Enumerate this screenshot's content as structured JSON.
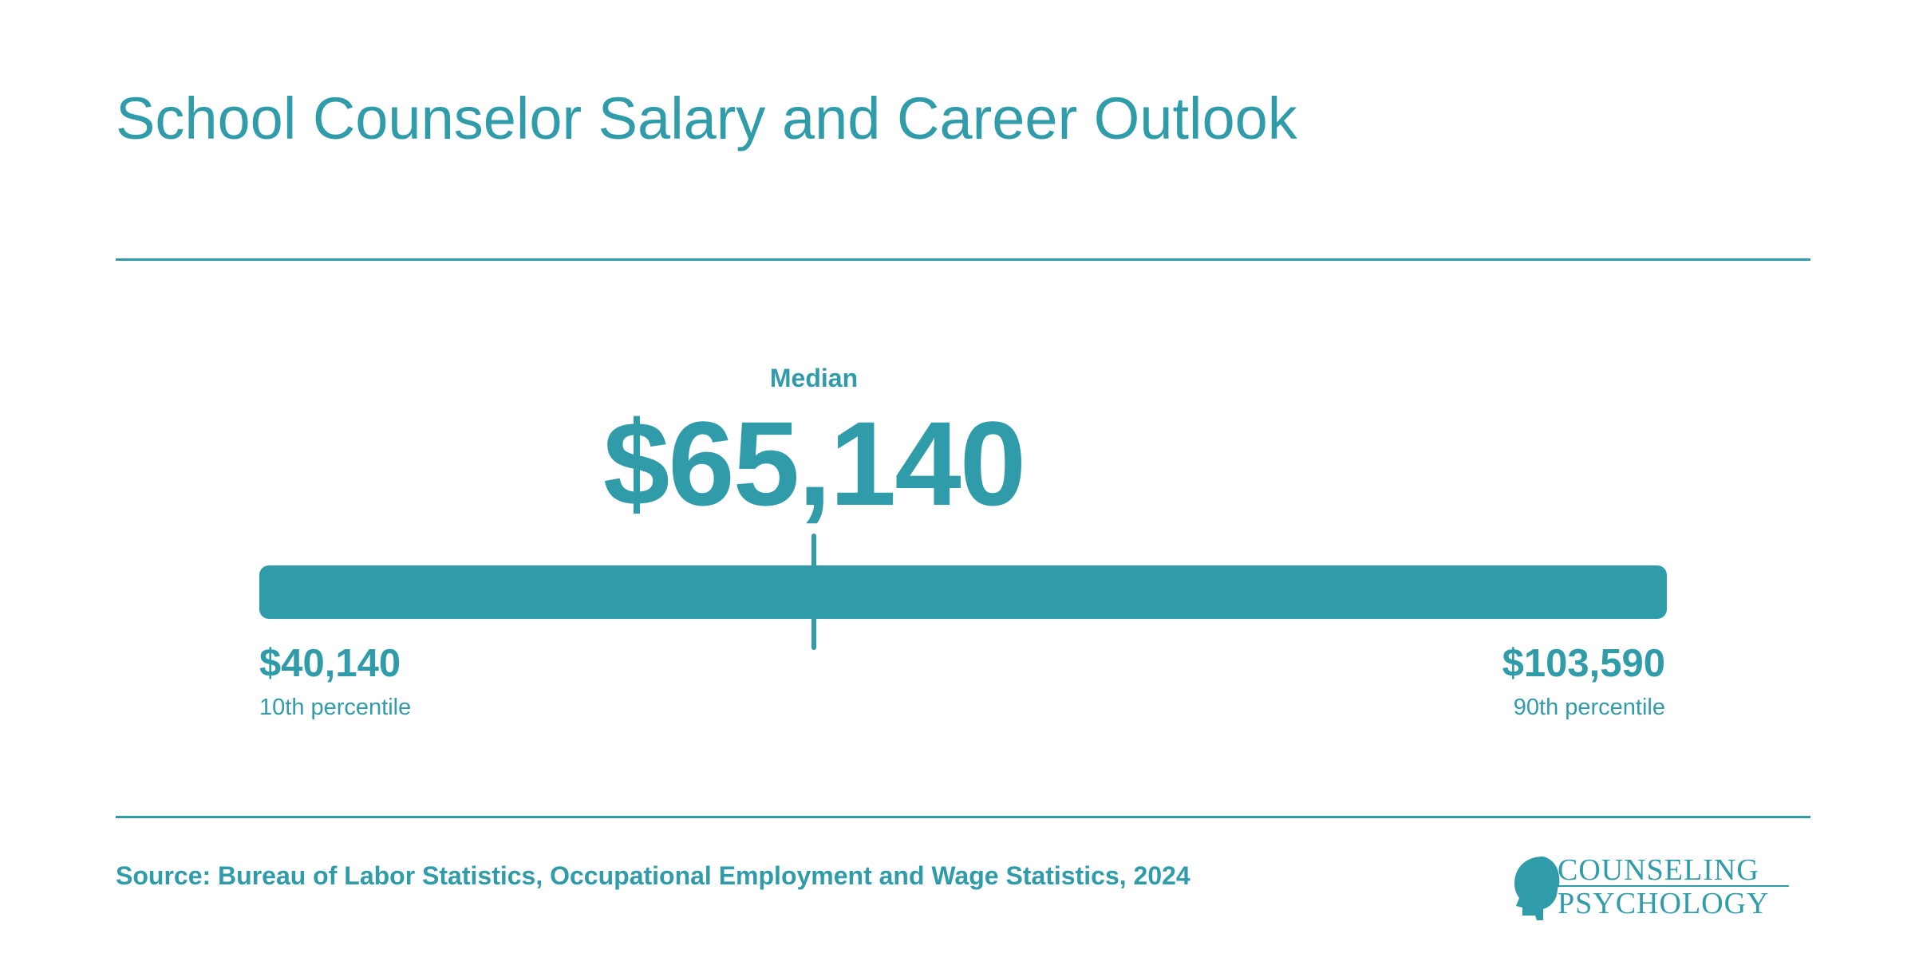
{
  "page": {
    "title": "School Counselor Salary and Career Outlook",
    "source": "Source: Bureau of Labor Statistics, Occupational Employment and Wage Statistics, 2024"
  },
  "colors": {
    "accent": "#309ca9",
    "background": "#ffffff"
  },
  "logo": {
    "line1": "COUNSELING",
    "line2": "PSYCHOLOGY",
    "icon": "head-silhouette-icon"
  },
  "chart_data": {
    "type": "range",
    "title": "School Counselor Salary and Career Outlook",
    "min": {
      "value": 40140,
      "display": "$40,140",
      "label": "10th percentile"
    },
    "median": {
      "value": 65140,
      "display": "$65,140",
      "label": "Median"
    },
    "max": {
      "value": 103590,
      "display": "$103,590",
      "label": "90th percentile"
    }
  }
}
